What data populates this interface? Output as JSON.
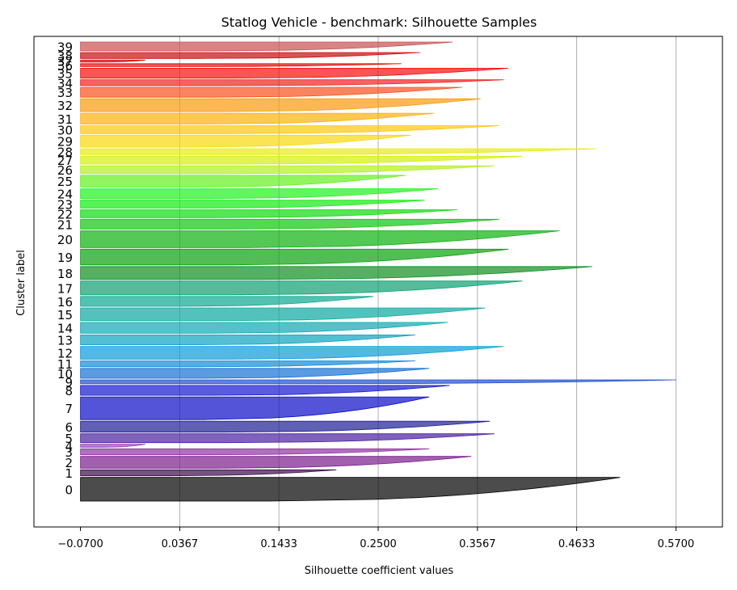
{
  "chart_data": {
    "type": "silhouette",
    "title": "Statlog Vehicle - benchmark: Silhouette Samples",
    "xlabel": "Silhouette coefficient values",
    "ylabel": "Cluster label",
    "xlim": [
      -0.12,
      0.62
    ],
    "x_ticks": [
      -0.07,
      0.0367,
      0.1433,
      0.25,
      0.3567,
      0.4633,
      0.57
    ],
    "x_tick_labels": [
      "−0.0700",
      "0.0367",
      "0.1433",
      "0.2500",
      "0.3567",
      "0.4633",
      "0.5700"
    ],
    "grid": "vertical",
    "clusters": [
      {
        "label": "0",
        "size": 24,
        "max": 0.51,
        "color": "#000000"
      },
      {
        "label": "1",
        "size": 6,
        "max": 0.205,
        "color": "#3c0a4a"
      },
      {
        "label": "2",
        "size": 12,
        "max": 0.35,
        "color": "#7a1c8c"
      },
      {
        "label": "3",
        "size": 6,
        "max": 0.305,
        "color": "#8e32a4"
      },
      {
        "label": "4",
        "size": 3,
        "max": 0.0,
        "color": "#9a44b4"
      },
      {
        "label": "5",
        "size": 9,
        "max": 0.375,
        "color": "#4a1ea0"
      },
      {
        "label": "6",
        "size": 11,
        "max": 0.37,
        "color": "#1c1c96"
      },
      {
        "label": "7",
        "size": 23,
        "max": 0.305,
        "color": "#0c0cc8"
      },
      {
        "label": "8",
        "size": 10,
        "max": 0.327,
        "color": "#1616d4"
      },
      {
        "label": "9",
        "size": 4,
        "max": 0.57,
        "color": "#1e4ed0"
      },
      {
        "label": "10",
        "size": 10,
        "max": 0.305,
        "color": "#1470d4"
      },
      {
        "label": "11",
        "size": 6,
        "max": 0.29,
        "color": "#0c8ad8"
      },
      {
        "label": "12",
        "size": 13,
        "max": 0.385,
        "color": "#0c9ad8"
      },
      {
        "label": "13",
        "size": 10,
        "max": 0.29,
        "color": "#0ca2c0"
      },
      {
        "label": "14",
        "size": 11,
        "max": 0.325,
        "color": "#0ca8b0"
      },
      {
        "label": "15",
        "size": 13,
        "max": 0.365,
        "color": "#0ca8a0"
      },
      {
        "label": "16",
        "size": 10,
        "max": 0.245,
        "color": "#0ca890"
      },
      {
        "label": "17",
        "size": 14,
        "max": 0.405,
        "color": "#0ca070"
      },
      {
        "label": "18",
        "size": 13,
        "max": 0.48,
        "color": "#0c9020"
      },
      {
        "label": "19",
        "size": 16,
        "max": 0.39,
        "color": "#0ca010"
      },
      {
        "label": "20",
        "size": 17,
        "max": 0.445,
        "color": "#0cb00c"
      },
      {
        "label": "21",
        "size": 10,
        "max": 0.38,
        "color": "#0cc80c"
      },
      {
        "label": "22",
        "size": 8,
        "max": 0.335,
        "color": "#0cdc0c"
      },
      {
        "label": "23",
        "size": 8,
        "max": 0.3,
        "color": "#10ec10"
      },
      {
        "label": "24",
        "size": 10,
        "max": 0.315,
        "color": "#1cf21c"
      },
      {
        "label": "25",
        "size": 12,
        "max": 0.28,
        "color": "#64f01c"
      },
      {
        "label": "26",
        "size": 8,
        "max": 0.375,
        "color": "#b4f01c"
      },
      {
        "label": "27",
        "size": 8,
        "max": 0.405,
        "color": "#d4f00c"
      },
      {
        "label": "28",
        "size": 6,
        "max": 0.485,
        "color": "#e8ec0c"
      },
      {
        "label": "29",
        "size": 12,
        "max": 0.285,
        "color": "#f8d80c"
      },
      {
        "label": "30",
        "size": 8,
        "max": 0.38,
        "color": "#fcc80c"
      },
      {
        "label": "31",
        "size": 11,
        "max": 0.31,
        "color": "#fcb00c"
      },
      {
        "label": "32",
        "size": 13,
        "max": 0.36,
        "color": "#fc9a0c"
      },
      {
        "label": "33",
        "size": 10,
        "max": 0.34,
        "color": "#f8501c"
      },
      {
        "label": "34",
        "size": 6,
        "max": 0.385,
        "color": "#f02020"
      },
      {
        "label": "35",
        "size": 10,
        "max": 0.39,
        "color": "#f80c0c"
      },
      {
        "label": "36",
        "size": 3,
        "max": 0.275,
        "color": "#e00c0c"
      },
      {
        "label": "37",
        "size": 2,
        "max": 0.0,
        "color": "#d40c0c"
      },
      {
        "label": "38",
        "size": 6,
        "max": 0.295,
        "color": "#c80c0c"
      },
      {
        "label": "39",
        "size": 9,
        "max": 0.33,
        "color": "#c85050"
      }
    ]
  }
}
